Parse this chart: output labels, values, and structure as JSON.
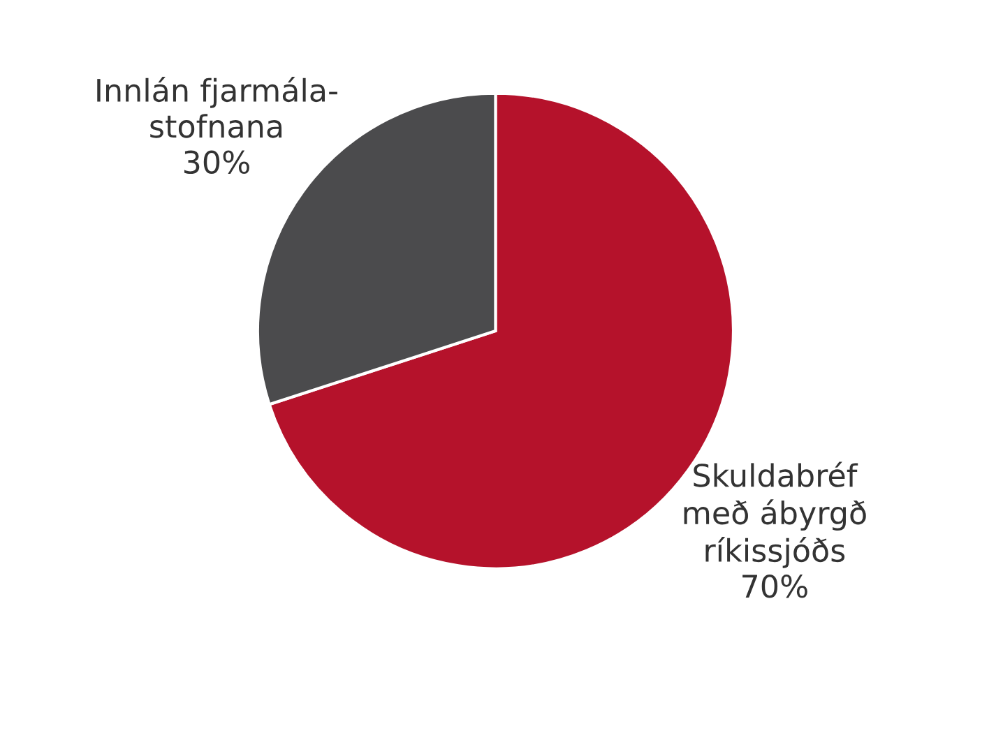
{
  "chart_data": {
    "type": "pie",
    "categories": [
      "Skuldabréf\nmeð ábyrgð\nríkissjóðs",
      "Innlán fjarmála-\nstofnana"
    ],
    "values": [
      70,
      30
    ],
    "value_labels": [
      "70%",
      "30%"
    ],
    "colors": [
      "#b5122b",
      "#4b4b4d"
    ]
  }
}
